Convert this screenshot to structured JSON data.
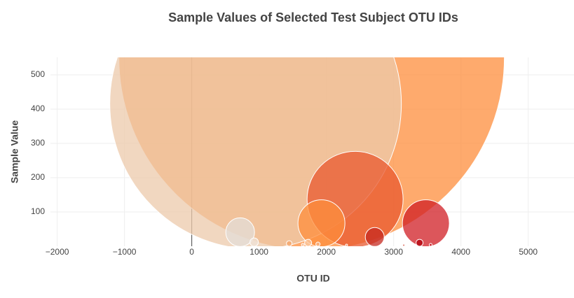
{
  "chart_data": {
    "type": "bubble",
    "title": "Sample Values of Selected Test Subject OTU IDs",
    "x_label": "OTU ID",
    "y_label": "Sample Value",
    "x": [
      1781,
      948,
      2427,
      1927,
      3479,
      719,
      2719,
      927,
      1448,
      1729,
      1875,
      3385,
      1650,
      2300,
      3150,
      3550
    ],
    "y": [
      550,
      416,
      137,
      67,
      67,
      41,
      27,
      12,
      8,
      10,
      6,
      10,
      4,
      3,
      3,
      4
    ],
    "colors": [
      "#fd8d3c",
      "#ecc9ab",
      "#e8582f",
      "#fd8d3c",
      "#d01e24",
      "#e3ddd8",
      "#c62a20",
      "#efe3d8",
      "#f6a56a",
      "#f9c9a3",
      "#f6b78a",
      "#b3000a",
      "#f4c3a0",
      "#f08a5a",
      "#d0402c",
      "#c7151c"
    ],
    "opacity": 0.75,
    "xlim": [
      -2100,
      5680
    ],
    "ylim": [
      0,
      551
    ],
    "xticks": [
      {
        "value": -2000,
        "label": "−2000"
      },
      {
        "value": -1000,
        "label": "−1000"
      },
      0,
      1000,
      2000,
      3000,
      4000,
      5000
    ],
    "yticks": [
      100,
      200,
      300,
      400,
      500
    ],
    "grid": true,
    "zeroline": true
  }
}
